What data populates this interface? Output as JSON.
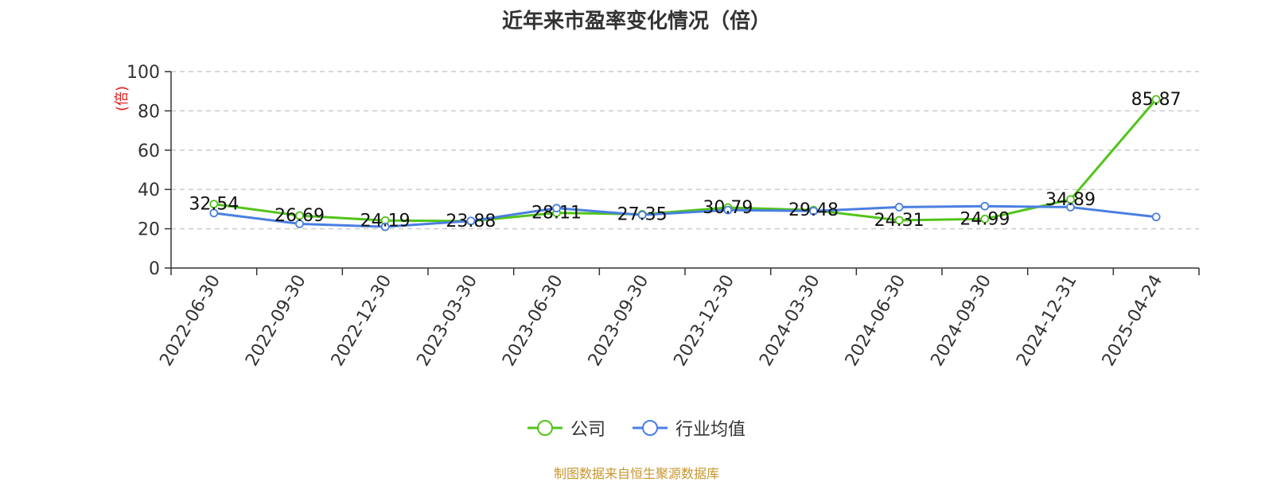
{
  "chart_data": {
    "type": "line",
    "title": "近年来市盈率变化情况（倍）",
    "ylabel": "(倍)",
    "xlabel": "",
    "categories": [
      "2022-06-30",
      "2022-09-30",
      "2022-12-30",
      "2023-03-30",
      "2023-06-30",
      "2023-09-30",
      "2023-12-30",
      "2024-03-30",
      "2024-06-30",
      "2024-09-30",
      "2024-12-31",
      "2025-04-24"
    ],
    "y_ticks": [
      "0",
      "20",
      "40",
      "60",
      "80",
      "100"
    ],
    "ylim": [
      0,
      100
    ],
    "grid": "horizontal dashed",
    "legend_position": "bottom-center",
    "series": [
      {
        "name": "公司",
        "color": "#52c41a",
        "values": [
          32.54,
          26.69,
          24.19,
          23.88,
          28.11,
          27.35,
          30.79,
          29.48,
          24.31,
          24.99,
          34.89,
          85.87
        ],
        "labels": [
          "32.54",
          "26.69",
          "24.19",
          "23.88",
          "28.11",
          "27.35",
          "30.79",
          "29.48",
          "24.31",
          "24.99",
          "34.89",
          "85.87"
        ]
      },
      {
        "name": "行业均值",
        "color": "#4a7fe0",
        "values": [
          28.0,
          22.5,
          21.0,
          24.0,
          30.5,
          27.0,
          29.5,
          29.0,
          31.0,
          31.5,
          31.0,
          26.0
        ]
      }
    ]
  },
  "footer": {
    "source": "制图数据来自恒生聚源数据库",
    "source_color": "#c8962d"
  }
}
